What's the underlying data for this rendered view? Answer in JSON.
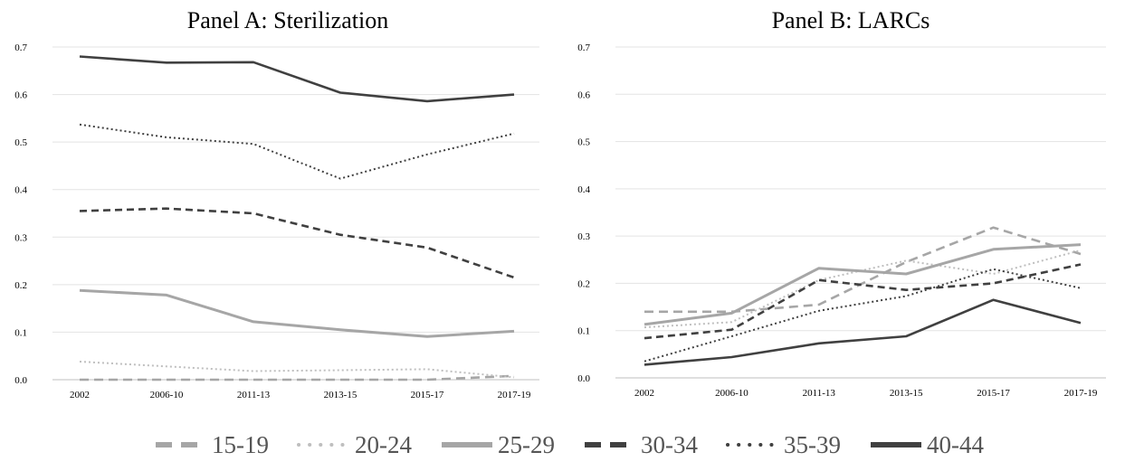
{
  "chart_data": [
    {
      "type": "line",
      "title": "Panel A: Sterilization",
      "categories": [
        "2002",
        "2006-10",
        "2011-13",
        "2013-15",
        "2015-17",
        "2017-19"
      ],
      "ylim": [
        0,
        0.7
      ],
      "yticks": [
        "0.0",
        "0.1",
        "0.2",
        "0.3",
        "0.4",
        "0.5",
        "0.6",
        "0.7"
      ],
      "grid": true,
      "series": [
        {
          "name": "15-19",
          "values": [
            0.0,
            0.0,
            0.0,
            0.0,
            0.0,
            0.008
          ]
        },
        {
          "name": "20-24",
          "values": [
            0.038,
            0.028,
            0.018,
            0.02,
            0.022,
            0.005
          ]
        },
        {
          "name": "25-29",
          "values": [
            0.188,
            0.178,
            0.122,
            0.105,
            0.091,
            0.102
          ]
        },
        {
          "name": "30-34",
          "values": [
            0.355,
            0.36,
            0.35,
            0.305,
            0.278,
            0.215
          ]
        },
        {
          "name": "35-39",
          "values": [
            0.537,
            0.51,
            0.496,
            0.423,
            0.474,
            0.518
          ]
        },
        {
          "name": "40-44",
          "values": [
            0.68,
            0.667,
            0.668,
            0.604,
            0.586,
            0.6
          ]
        }
      ]
    },
    {
      "type": "line",
      "title": "Panel B: LARCs",
      "categories": [
        "2002",
        "2006-10",
        "2011-13",
        "2013-15",
        "2015-17",
        "2017-19"
      ],
      "ylim": [
        0,
        0.7
      ],
      "yticks": [
        "0.0",
        "0.1",
        "0.2",
        "0.3",
        "0.4",
        "0.5",
        "0.6",
        "0.7"
      ],
      "grid": true,
      "series": [
        {
          "name": "15-19",
          "values": [
            0.14,
            0.14,
            0.155,
            0.245,
            0.318,
            0.262
          ]
        },
        {
          "name": "20-24",
          "values": [
            0.107,
            0.118,
            0.207,
            0.248,
            0.22,
            0.27
          ]
        },
        {
          "name": "25-29",
          "values": [
            0.113,
            0.137,
            0.232,
            0.22,
            0.272,
            0.282
          ]
        },
        {
          "name": "30-34",
          "values": [
            0.084,
            0.102,
            0.207,
            0.186,
            0.2,
            0.24
          ]
        },
        {
          "name": "35-39",
          "values": [
            0.035,
            0.088,
            0.142,
            0.173,
            0.23,
            0.19
          ]
        },
        {
          "name": "40-44",
          "values": [
            0.028,
            0.044,
            0.073,
            0.088,
            0.165,
            0.116
          ]
        }
      ]
    }
  ],
  "legend": {
    "placement": "bottom",
    "items": [
      {
        "label": "15-19",
        "color": "#a6a6a6",
        "dash": "dashed"
      },
      {
        "label": "20-24",
        "color": "#bfbfbf",
        "dash": "dotted"
      },
      {
        "label": "25-29",
        "color": "#a6a6a6",
        "dash": "solid"
      },
      {
        "label": "30-34",
        "color": "#404040",
        "dash": "dashed"
      },
      {
        "label": "35-39",
        "color": "#404040",
        "dash": "dotted"
      },
      {
        "label": "40-44",
        "color": "#404040",
        "dash": "solid"
      }
    ]
  }
}
